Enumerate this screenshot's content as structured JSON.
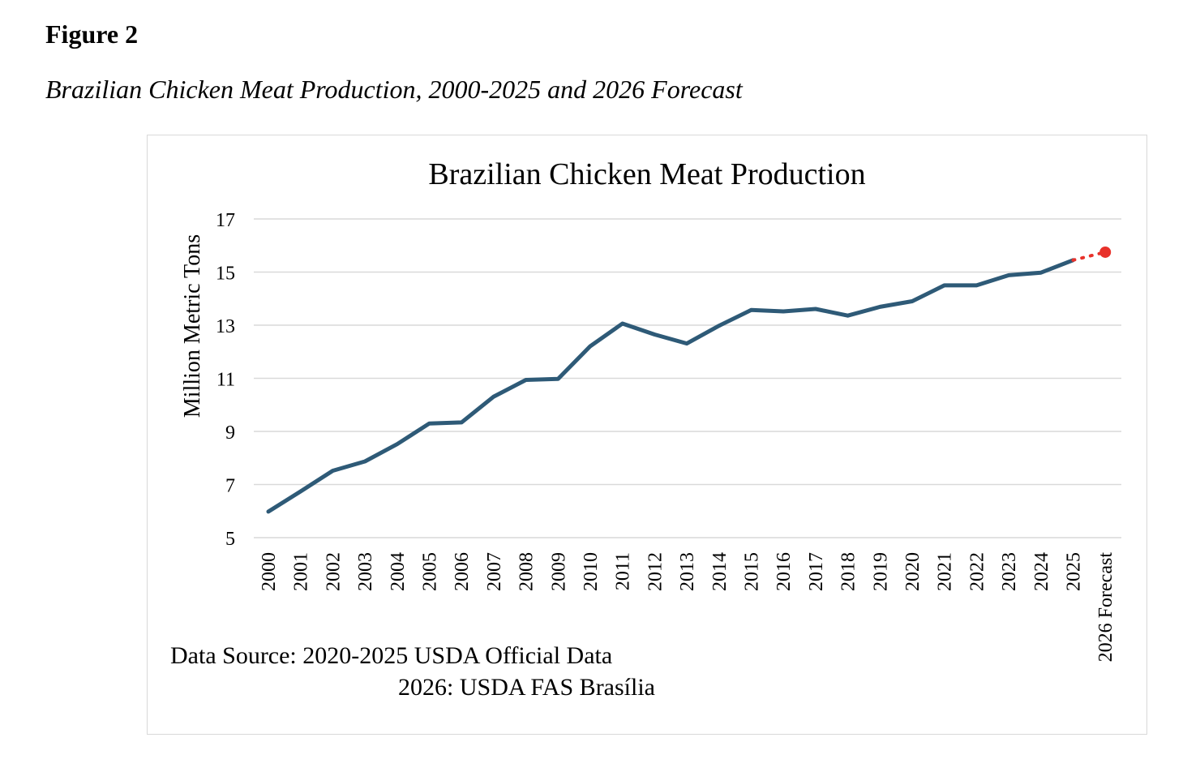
{
  "figure": {
    "label": "Figure 2",
    "caption": "Brazilian Chicken Meat Production, 2000-2025 and 2026 Forecast"
  },
  "chart_data": {
    "type": "line",
    "title": "Brazilian Chicken Meat Production",
    "xlabel": "",
    "ylabel": "Million Metric Tons",
    "ylim": [
      5,
      17
    ],
    "yticks": [
      5,
      7,
      9,
      11,
      13,
      15,
      17
    ],
    "grid": true,
    "categories": [
      "2000",
      "2001",
      "2002",
      "2003",
      "2004",
      "2005",
      "2006",
      "2007",
      "2008",
      "2009",
      "2010",
      "2011",
      "2012",
      "2013",
      "2014",
      "2015",
      "2016",
      "2017",
      "2018",
      "2019",
      "2020",
      "2021",
      "2022",
      "2023",
      "2024",
      "2025",
      "2026 Forecast"
    ],
    "series": [
      {
        "style": "solid",
        "color": "#2e5a77",
        "values": [
          5.98,
          6.74,
          7.52,
          7.87,
          8.52,
          9.3,
          9.34,
          10.31,
          10.94,
          10.98,
          12.21,
          13.06,
          12.65,
          12.31,
          12.98,
          13.57,
          13.52,
          13.61,
          13.36,
          13.69,
          13.9,
          14.5,
          14.5,
          14.88,
          14.98,
          15.45,
          null
        ]
      },
      {
        "style": "dotted",
        "color": "#e8312a",
        "values": [
          null,
          null,
          null,
          null,
          null,
          null,
          null,
          null,
          null,
          null,
          null,
          null,
          null,
          null,
          null,
          null,
          null,
          null,
          null,
          null,
          null,
          null,
          null,
          null,
          null,
          15.45,
          15.75
        ]
      }
    ],
    "source_note": {
      "line1": "Data Source: 2020-2025 USDA Official Data",
      "line2": "2026: USDA FAS Brasília"
    }
  }
}
